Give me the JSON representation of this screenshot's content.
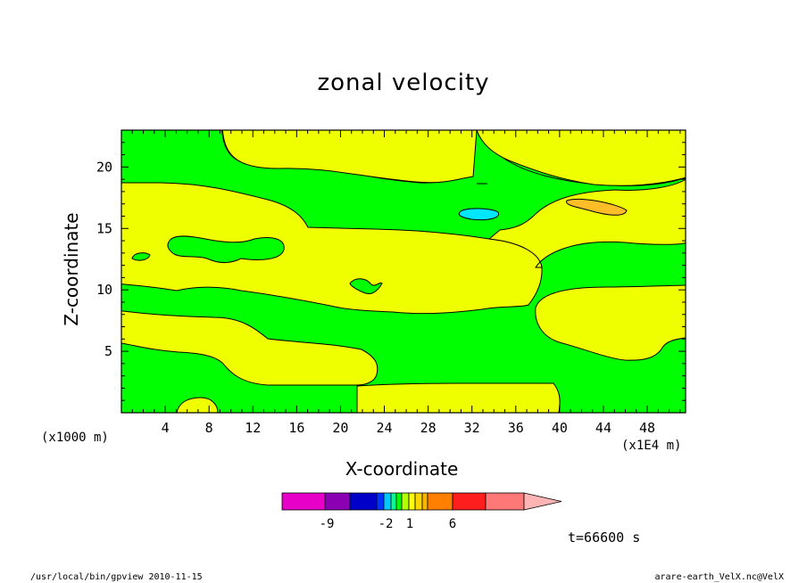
{
  "chart_data": {
    "type": "heatmap",
    "title": "zonal velocity",
    "xlabel": "X-coordinate",
    "ylabel": "Z-coordinate",
    "x_unit_left": "(x1000 m)",
    "x_unit_right": "(x1E4 m)",
    "x_ticks": [
      4,
      8,
      12,
      16,
      20,
      24,
      28,
      32,
      36,
      40,
      44,
      48
    ],
    "y_ticks": [
      5,
      10,
      15,
      20
    ],
    "xlim": [
      0,
      51.5
    ],
    "ylim": [
      0,
      23
    ],
    "colorbar": {
      "colors": [
        "#e600c8",
        "#8c00b4",
        "#0000c8",
        "#0032ff",
        "#00c8ff",
        "#00ff96",
        "#00ff00",
        "#b4ff00",
        "#ffff00",
        "#ffd700",
        "#ffb400",
        "#ff8000",
        "#ff1e1e",
        "#ff7878",
        "#ffb4b4"
      ],
      "labels": [
        "-9",
        "-2",
        "1",
        "6"
      ]
    },
    "fields": {
      "green": "#00ff00",
      "yellow": "#f0ff00",
      "orange": "#ffbe28",
      "cyan": "#00e6ff"
    },
    "time_label": "t=66600 s",
    "footer_left": "/usr/local/bin/gpview  2010-11-15",
    "footer_right": "arare-earth_VelX.nc@VelX"
  }
}
